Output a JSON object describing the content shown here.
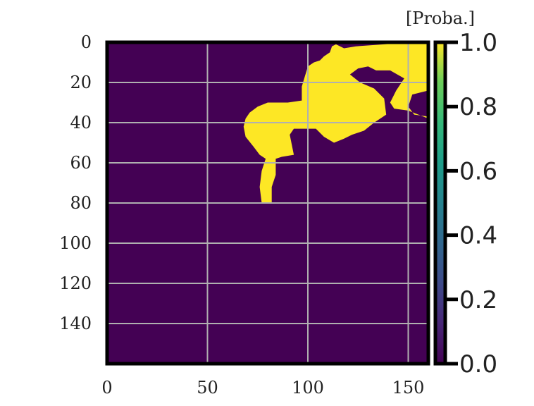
{
  "chart_data": {
    "type": "heatmap",
    "title": "",
    "xlabel": "",
    "ylabel": "",
    "xlim": [
      0,
      160
    ],
    "ylim": [
      160,
      0
    ],
    "x_ticks": [
      0,
      50,
      100,
      150
    ],
    "y_ticks": [
      0,
      20,
      40,
      60,
      80,
      100,
      120,
      140
    ],
    "x_tick_labels": [
      "0",
      "50",
      "100",
      "150"
    ],
    "y_tick_labels": [
      "0",
      "20",
      "40",
      "60",
      "80",
      "100",
      "120",
      "140"
    ],
    "grid": true,
    "colormap": "viridis",
    "background_value": 0.0,
    "foreground_value": 1.0,
    "binary_regions": [
      {
        "value": 1.0,
        "polygon": [
          [
            114,
            1
          ],
          [
            118,
            3
          ],
          [
            124,
            2
          ],
          [
            152,
            0
          ],
          [
            160,
            0
          ],
          [
            160,
            24
          ],
          [
            152,
            26
          ],
          [
            150,
            32
          ],
          [
            153,
            36
          ],
          [
            160,
            37
          ],
          [
            160,
            38
          ],
          [
            150,
            34
          ],
          [
            143,
            33
          ],
          [
            141,
            30
          ],
          [
            144,
            24
          ],
          [
            148,
            18
          ],
          [
            141,
            14
          ],
          [
            134,
            14
          ],
          [
            130,
            12
          ],
          [
            125,
            13
          ],
          [
            121,
            16
          ],
          [
            126,
            20
          ],
          [
            133,
            23
          ],
          [
            138,
            28
          ],
          [
            139,
            36
          ],
          [
            133,
            40
          ],
          [
            128,
            44
          ],
          [
            122,
            46
          ],
          [
            118,
            48
          ],
          [
            113,
            50
          ],
          [
            108,
            47
          ],
          [
            104,
            43
          ],
          [
            98,
            43
          ],
          [
            93,
            43
          ],
          [
            91,
            46
          ],
          [
            93,
            56
          ],
          [
            87,
            57
          ],
          [
            84,
            58
          ],
          [
            84,
            66
          ],
          [
            82,
            72
          ],
          [
            82,
            80
          ],
          [
            77,
            80
          ],
          [
            76,
            72
          ],
          [
            77,
            64
          ],
          [
            79,
            58
          ],
          [
            76,
            56
          ],
          [
            73,
            52
          ],
          [
            69,
            47
          ],
          [
            68,
            42
          ],
          [
            69,
            38
          ],
          [
            71,
            35
          ],
          [
            75,
            32
          ],
          [
            80,
            30
          ],
          [
            90,
            30
          ],
          [
            97,
            29
          ],
          [
            97,
            22
          ],
          [
            100,
            12
          ],
          [
            103,
            10
          ],
          [
            106,
            9
          ],
          [
            108,
            7
          ],
          [
            111,
            5
          ],
          [
            112,
            2
          ]
        ]
      }
    ],
    "colorbar": {
      "label": "[Proba.]",
      "min": 0.0,
      "max": 1.0,
      "ticks": [
        0.0,
        0.2,
        0.4,
        0.6,
        0.8,
        1.0
      ],
      "tick_labels": [
        "0.0",
        "0.2",
        "0.4",
        "0.6",
        "0.8",
        "1.0"
      ]
    },
    "colors": {
      "low": "#440154",
      "high": "#fde725",
      "grid": "#b0b0b0",
      "frame": "#000000"
    }
  }
}
